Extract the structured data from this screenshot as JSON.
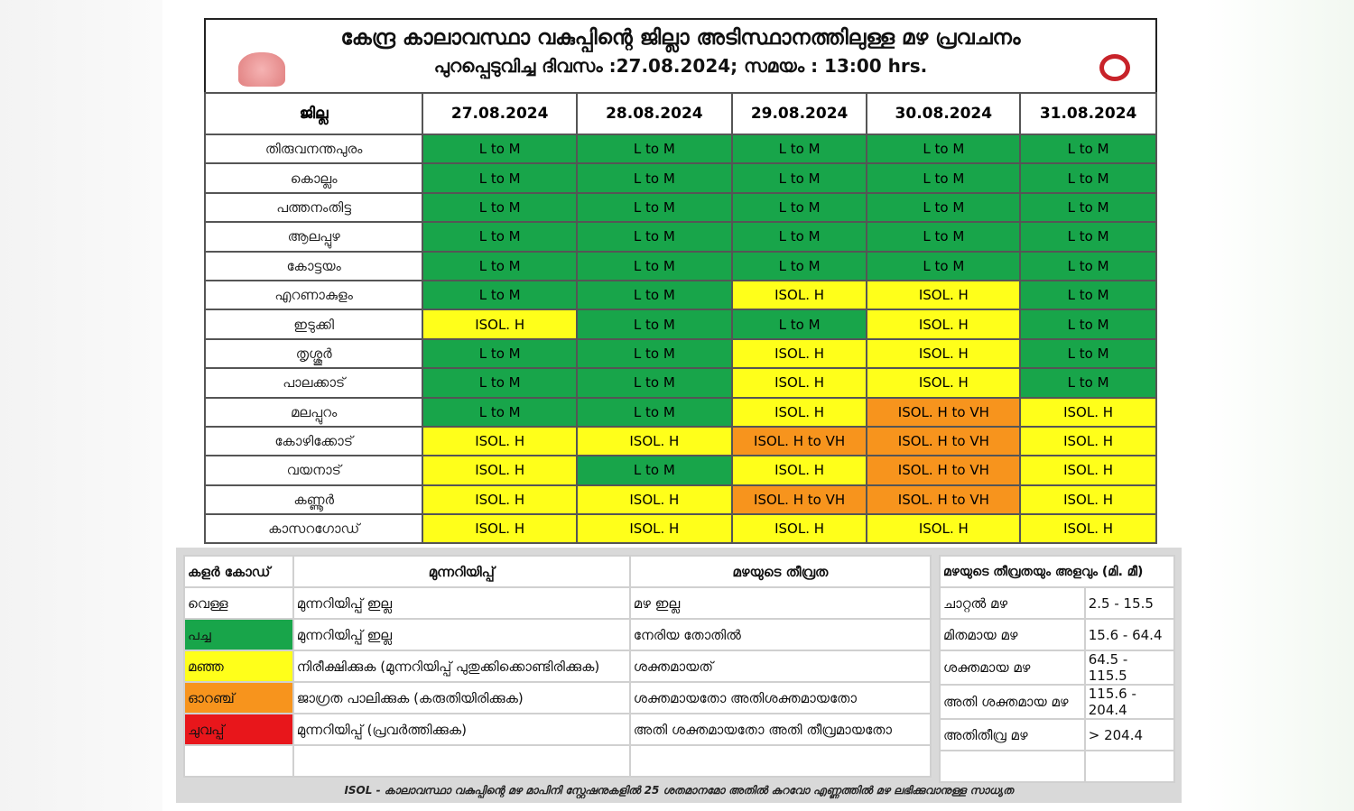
{
  "title": {
    "line1": "കേന്ദ്ര കാലാവസ്ഥാ വകുപ്പിന്റെ ജില്ലാ അടിസ്ഥാനത്തിലുള്ള മഴ പ്രവചനം",
    "line2": "പുറപ്പെടുവിച്ച ദിവസം :27.08.2024; സമയം : 13:00 hrs."
  },
  "forecast": {
    "district_header": "ജില്ല",
    "dates": [
      "27.08.2024",
      "28.08.2024",
      "29.08.2024",
      "30.08.2024",
      "31.08.2024"
    ],
    "levels": {
      "G": {
        "label": "L to M",
        "color": "#18a54a"
      },
      "Y": {
        "label": "ISOL. H",
        "color": "#ffff1a"
      },
      "O": {
        "label": "ISOL. H to VH",
        "color": "#f7941d"
      }
    },
    "rows": [
      {
        "district": "തിരുവനന്തപുരം",
        "values": [
          "G",
          "G",
          "G",
          "G",
          "G"
        ]
      },
      {
        "district": "കൊല്ലം",
        "values": [
          "G",
          "G",
          "G",
          "G",
          "G"
        ]
      },
      {
        "district": "പത്തനംതിട്ട",
        "values": [
          "G",
          "G",
          "G",
          "G",
          "G"
        ]
      },
      {
        "district": "ആലപ്പുഴ",
        "values": [
          "G",
          "G",
          "G",
          "G",
          "G"
        ]
      },
      {
        "district": "കോട്ടയം",
        "values": [
          "G",
          "G",
          "G",
          "G",
          "G"
        ]
      },
      {
        "district": "എറണാകുളം",
        "values": [
          "G",
          "G",
          "Y",
          "Y",
          "G"
        ]
      },
      {
        "district": "ഇടുക്കി",
        "values": [
          "Y",
          "G",
          "G",
          "Y",
          "G"
        ]
      },
      {
        "district": "തൃശ്ശൂർ",
        "values": [
          "G",
          "G",
          "Y",
          "Y",
          "G"
        ]
      },
      {
        "district": "പാലക്കാട്",
        "values": [
          "G",
          "G",
          "Y",
          "Y",
          "G"
        ]
      },
      {
        "district": "മലപ്പുറം",
        "values": [
          "G",
          "G",
          "Y",
          "O",
          "Y"
        ]
      },
      {
        "district": "കോഴിക്കോട്",
        "values": [
          "Y",
          "Y",
          "O",
          "O",
          "Y"
        ]
      },
      {
        "district": "വയനാട്",
        "values": [
          "Y",
          "G",
          "Y",
          "O",
          "Y"
        ]
      },
      {
        "district": "കണ്ണൂർ",
        "values": [
          "Y",
          "Y",
          "O",
          "O",
          "Y"
        ]
      },
      {
        "district": "കാസറഗോഡ്",
        "values": [
          "Y",
          "Y",
          "Y",
          "Y",
          "Y"
        ]
      }
    ]
  },
  "legend": {
    "headers": [
      "കളർ കോഡ്",
      "മുന്നറിയിപ്പ്",
      "മഴയുടെ തീവ്രത"
    ],
    "rows": [
      {
        "color_name": "വെള്ള",
        "color": "#ffffff",
        "warning": "മുന്നറിയിപ്പ് ഇല്ല",
        "intensity": "മഴ ഇല്ല"
      },
      {
        "color_name": "പച്ച",
        "color": "#18a54a",
        "warning": "മുന്നറിയിപ്പ് ഇല്ല",
        "intensity": "നേരിയ തോതിൽ"
      },
      {
        "color_name": "മഞ്ഞ",
        "color": "#ffff1a",
        "warning": "നിരീക്ഷിക്കുക (മുന്നറിയിപ്പ് പുതുക്കിക്കൊണ്ടിരിക്കുക)",
        "intensity": "ശക്തമായത്"
      },
      {
        "color_name": "ഓറഞ്ച്",
        "color": "#f7941d",
        "warning": "ജാഗ്രത പാലിക്കുക (കരുതിയിരിക്കുക)",
        "intensity": "ശക്തമായതോ അതിശക്തമായതോ"
      },
      {
        "color_name": "ചുവപ്പ്",
        "color": "#e8161b",
        "warning": "മുന്നറിയിപ്പ് (പ്രവർത്തിക്കുക)",
        "intensity": "അതി ശക്തമായതോ അതി തീവ്രമായതോ"
      }
    ],
    "amount_header": "മഴയുടെ തീവ്രതയും അളവും (മി. മീ)",
    "amounts": [
      {
        "name": "ചാറ്റൽ മഴ",
        "range": "2.5 - 15.5"
      },
      {
        "name": "മിതമായ മഴ",
        "range": "15.6 - 64.4"
      },
      {
        "name": "ശക്തമായ മഴ",
        "range": "64.5 - 115.5"
      },
      {
        "name": "അതി ശക്തമായ മഴ",
        "range": "115.6 - 204.4"
      },
      {
        "name": "അതിതീവ്ര മഴ",
        "range": "> 204.4"
      }
    ],
    "footnote": "ISOL - കാലാവസ്ഥാ വകുപ്പിന്റെ മഴ മാപിനി സ്റ്റേഷനുകളിൽ 25 ശതമാനമോ അതിൽ കുറവോ എണ്ണത്തിൽ മഴ ലഭിക്കുവാനുള്ള സാധ്യത"
  }
}
